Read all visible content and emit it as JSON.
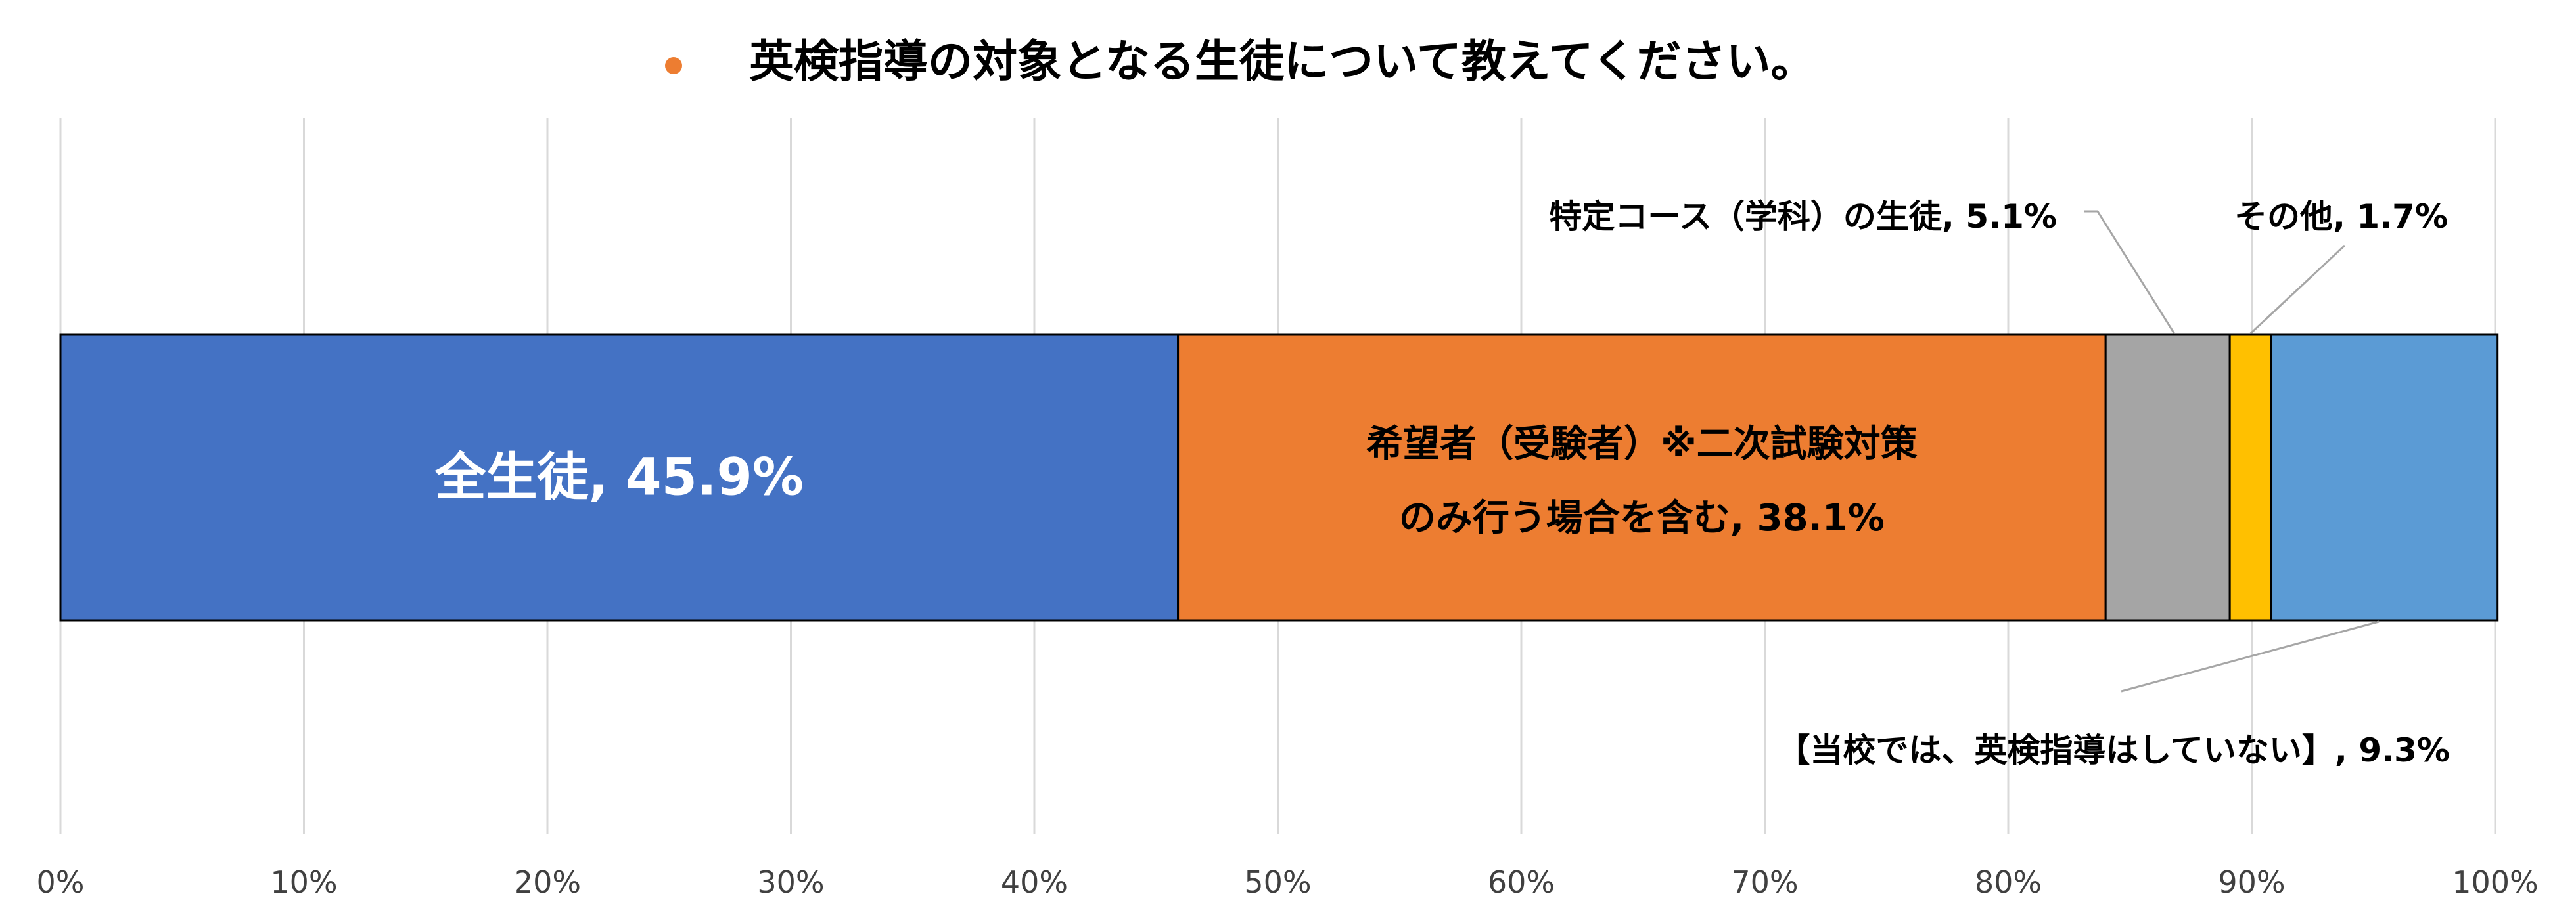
{
  "chart_data": {
    "type": "bar",
    "orientation": "horizontal",
    "stacked": "percent",
    "title": "英検指導の対象となる生徒について教えてください。",
    "legend_position": "top",
    "xlim": [
      0,
      100
    ],
    "x_ticks": [
      "0%",
      "10%",
      "20%",
      "30%",
      "40%",
      "50%",
      "60%",
      "70%",
      "80%",
      "90%",
      "100%"
    ],
    "grid": true,
    "series": [
      {
        "name": "全生徒",
        "value": 45.9,
        "color": "#4472C4",
        "label": "全生徒, 45.9%"
      },
      {
        "name": "希望者（受験者）※二次試験対策のみ行う場合を含む",
        "value": 38.1,
        "color": "#ED7D31",
        "label_lines": [
          "希望者（受験者）※二次試験対策",
          "のみ行う場合を含む, 38.1%"
        ]
      },
      {
        "name": "特定コース（学科）の生徒",
        "value": 5.1,
        "color": "#A5A5A5",
        "label": "特定コース（学科）の生徒, 5.1%"
      },
      {
        "name": "その他",
        "value": 1.7,
        "color": "#FFC000",
        "label": "その他, 1.7%"
      },
      {
        "name": "【当校では、英検指導はしていない】",
        "value": 9.3,
        "color": "#5B9BD5",
        "label": "【当校では、英検指導はしていない】, 9.3%"
      }
    ],
    "legend_dot_color": "#ED7D31"
  }
}
